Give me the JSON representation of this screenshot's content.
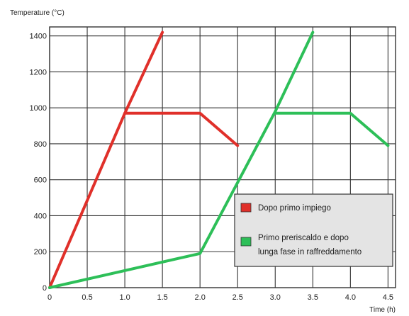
{
  "chart_data": {
    "type": "line",
    "title": "",
    "ylabel": "Temperature (°C)",
    "xlabel": "Time (h)",
    "xlim": [
      0,
      4.6
    ],
    "ylim": [
      0,
      1450
    ],
    "x_ticks": [
      0,
      0.5,
      1.0,
      1.5,
      2.0,
      2.5,
      3.0,
      3.5,
      4.0,
      4.5
    ],
    "x_tick_labels": [
      "0",
      "0.5",
      "1.0",
      "1.5",
      "2.0",
      "2.5",
      "3.0",
      "3.5",
      "4.0",
      "4.5"
    ],
    "y_ticks": [
      0,
      200,
      400,
      600,
      800,
      1000,
      1200,
      1400
    ],
    "y_tick_labels": [
      "0",
      "200",
      "400",
      "600",
      "800",
      "1000",
      "1200",
      "1400"
    ],
    "grid": true,
    "legend_position": "lower-right",
    "series": [
      {
        "name": "Dopo primo impiego",
        "color": "#e0302a",
        "x": [
          0,
          1.0,
          1.5
        ],
        "y": [
          0,
          970,
          1420
        ],
        "x2": [
          1.0,
          2.0,
          2.5
        ],
        "y2": [
          970,
          970,
          790
        ]
      },
      {
        "name": "Primo preriscaldo e dopo lunga fase in raffreddamento",
        "color": "#2dbf58",
        "x": [
          0,
          2.0,
          3.0,
          3.5
        ],
        "y": [
          0,
          190,
          980,
          1420
        ],
        "x2": [
          3.0,
          4.0,
          4.5
        ],
        "y2": [
          970,
          970,
          790
        ]
      }
    ]
  },
  "legend": {
    "item1": "Dopo primo impiego",
    "item2_line1": "Primo preriscaldo e dopo",
    "item2_line2": "lunga fase in raffreddamento"
  }
}
